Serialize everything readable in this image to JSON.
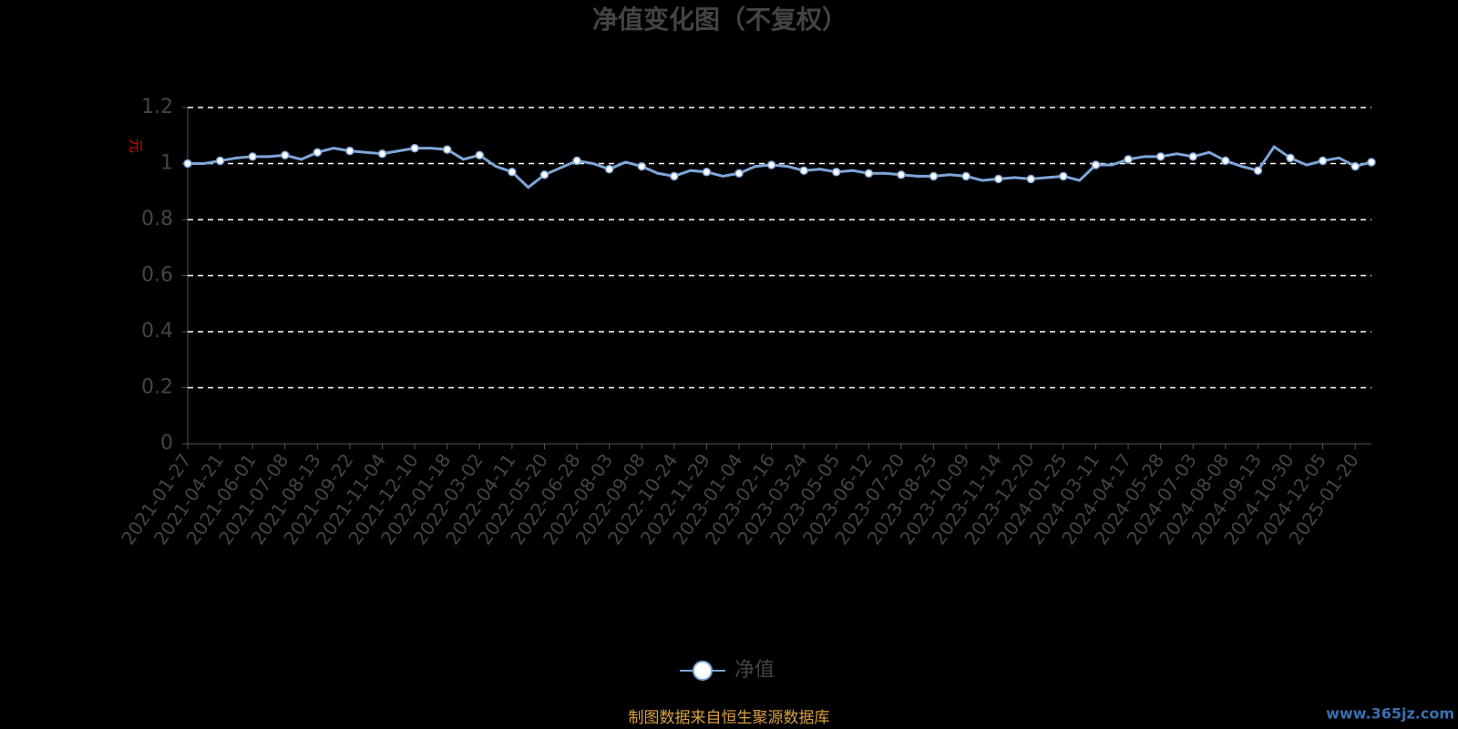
{
  "chart_data": {
    "type": "line",
    "title": "净值变化图（不复权）",
    "y_label": "元",
    "categories": [
      "2021-01-27",
      null,
      "2021-04-21",
      null,
      "2021-06-01",
      null,
      "2021-07-08",
      null,
      "2021-08-13",
      null,
      "2021-09-22",
      null,
      "2021-11-04",
      null,
      "2021-12-10",
      null,
      "2022-01-18",
      null,
      "2022-03-02",
      null,
      "2022-04-11",
      null,
      "2022-05-20",
      null,
      "2022-06-28",
      null,
      "2022-08-03",
      null,
      "2022-09-08",
      null,
      "2022-10-24",
      null,
      "2022-11-29",
      null,
      "2023-01-04",
      null,
      "2023-02-16",
      null,
      "2023-03-24",
      null,
      "2023-05-05",
      null,
      "2023-06-12",
      null,
      "2023-07-20",
      null,
      "2023-08-25",
      null,
      "2023-10-09",
      null,
      "2023-11-14",
      null,
      "2023-12-20",
      null,
      "2024-01-25",
      null,
      "2024-03-11",
      null,
      "2024-04-17",
      null,
      "2024-05-28",
      null,
      "2024-07-03",
      null,
      "2024-08-08",
      null,
      "2024-09-13",
      null,
      "2024-10-30",
      null,
      "2024-12-05",
      null,
      "2025-01-20",
      null
    ],
    "series": [
      {
        "name": "净值",
        "color": "#7ea6d8",
        "values": [
          1.0,
          1.0,
          1.01,
          1.02,
          1.025,
          1.025,
          1.03,
          1.015,
          1.04,
          1.055,
          1.045,
          1.04,
          1.035,
          1.045,
          1.055,
          1.055,
          1.05,
          1.015,
          1.03,
          0.99,
          0.97,
          0.915,
          0.96,
          0.985,
          1.01,
          1.0,
          0.98,
          1.005,
          0.99,
          0.965,
          0.955,
          0.975,
          0.97,
          0.955,
          0.965,
          0.99,
          0.995,
          0.99,
          0.975,
          0.98,
          0.97,
          0.975,
          0.965,
          0.965,
          0.96,
          0.955,
          0.955,
          0.96,
          0.955,
          0.94,
          0.945,
          0.95,
          0.945,
          0.95,
          0.955,
          0.94,
          0.995,
          0.995,
          1.015,
          1.025,
          1.025,
          1.035,
          1.025,
          1.04,
          1.01,
          0.99,
          0.975,
          1.06,
          1.02,
          0.995,
          1.01,
          1.02,
          0.99,
          1.005
        ]
      }
    ],
    "ylim": [
      0,
      1.2
    ],
    "yticks": [
      0,
      0.2,
      0.4,
      0.6,
      0.8,
      1,
      1.2
    ],
    "grid": true,
    "source": "制图数据来自恒生聚源数据库",
    "watermark": "www.365jz.com"
  }
}
